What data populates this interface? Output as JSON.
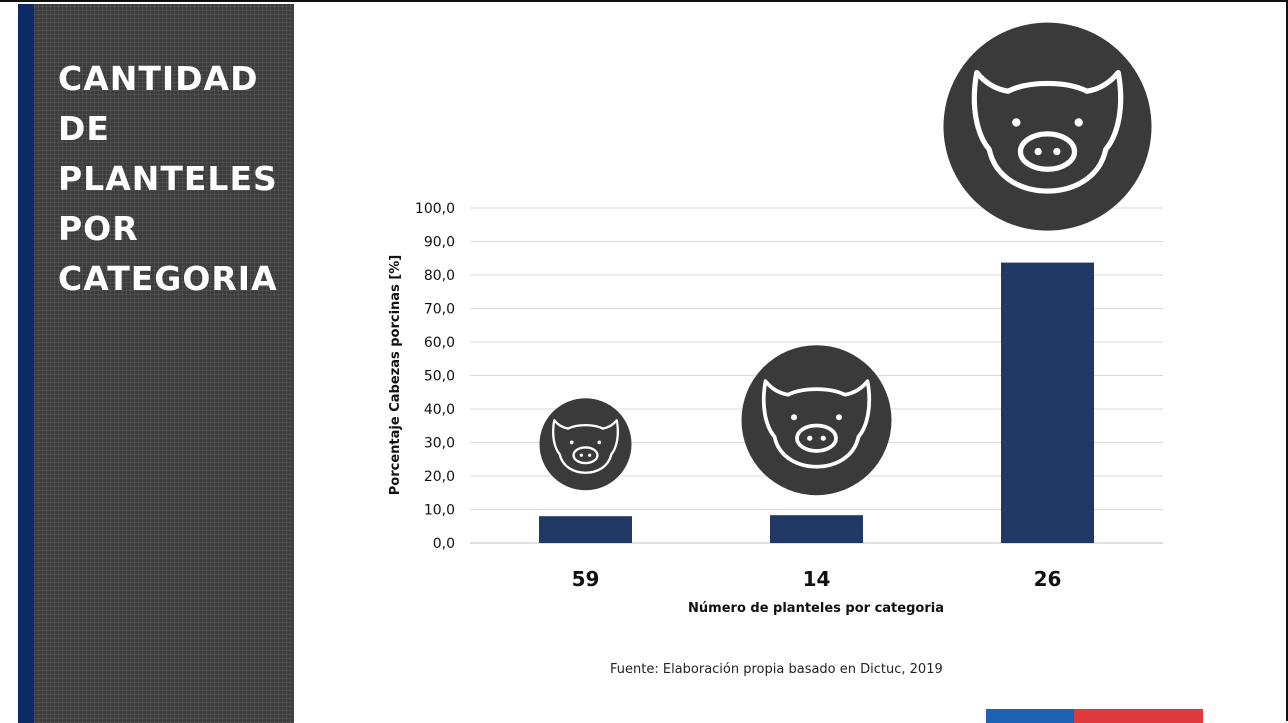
{
  "side_panel": {
    "title_lines": [
      "CANTIDAD",
      "DE",
      "PLANTELES",
      "POR",
      "CATEGORIA"
    ]
  },
  "chart_data": {
    "type": "bar",
    "categories": [
      "59",
      "14",
      "26"
    ],
    "values": [
      8.0,
      8.3,
      83.7
    ],
    "xlabel": "Número de planteles por categoria",
    "ylabel": "Porcentaje  Cabezas porcinas [%]",
    "ylim": [
      0,
      100
    ],
    "yticks": [
      "0,0",
      "10,0",
      "20,0",
      "30,0",
      "40,0",
      "50,0",
      "60,0",
      "70,0",
      "80,0",
      "90,0",
      "100,0"
    ],
    "grid": true,
    "bar_color": "#1f3864",
    "annotations": [
      "pig-icon",
      "pig-icon",
      "pig-icon"
    ]
  },
  "source_note": "Fuente: Elaboración propia basado en Dictuc, 2019",
  "colors": {
    "accent_blue": "#0b2a66",
    "panel_gray": "#3c3c3c",
    "icon_circle": "#3a3a3a",
    "flag_blue": "#1b62b5",
    "flag_red": "#e0393e"
  }
}
